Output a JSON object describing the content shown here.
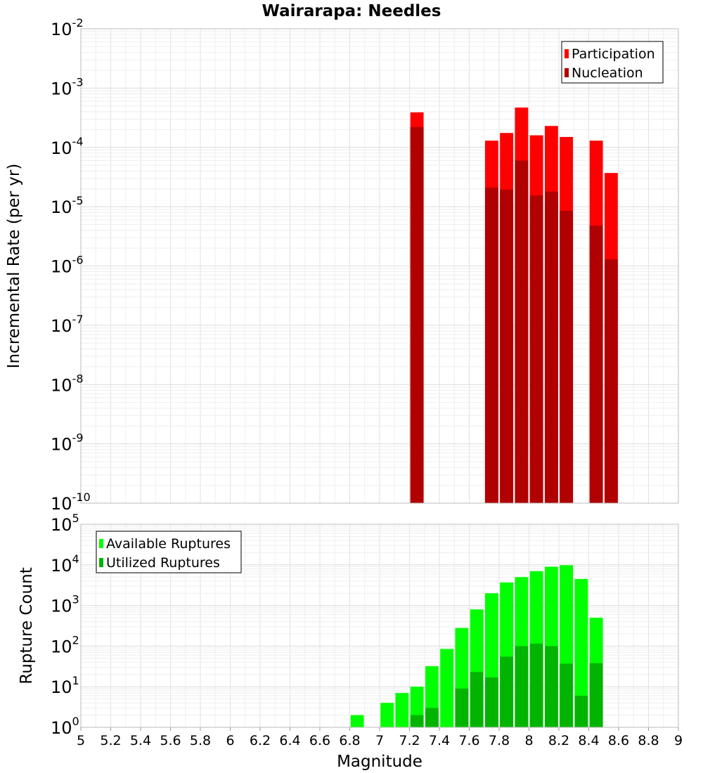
{
  "title": "Wairarapa: Needles",
  "colors": {
    "participation": "#ff0000",
    "nucleation": "#b00000",
    "available": "#00ff00",
    "utilized": "#00b400",
    "grid": "#e6e6e6"
  },
  "chart_data": [
    {
      "type": "bar",
      "title": "Wairarapa: Needles",
      "xlabel": "Magnitude",
      "ylabel": "Incremental Rate (per yr)",
      "xlim": [
        5,
        9
      ],
      "ylim_exp": [
        -10,
        -2
      ],
      "ylog": true,
      "grid": true,
      "legend_position": "top-right",
      "bin_width": 0.1,
      "series": [
        {
          "name": "Participation",
          "color_key": "participation",
          "x": [
            7.25,
            7.75,
            7.85,
            7.95,
            8.05,
            8.15,
            8.25,
            8.45,
            8.55
          ],
          "values": [
            0.00039,
            0.00013,
            0.000175,
            0.00047,
            0.00016,
            0.00023,
            0.00015,
            0.00013,
            3.7e-05
          ]
        },
        {
          "name": "Nucleation",
          "color_key": "nucleation",
          "x": [
            7.25,
            7.75,
            7.85,
            7.95,
            8.05,
            8.15,
            8.25,
            8.45,
            8.55
          ],
          "values": [
            0.00022,
            2.1e-05,
            1.95e-05,
            6e-05,
            1.55e-05,
            1.8e-05,
            8.5e-06,
            4.8e-06,
            1.3e-06
          ]
        }
      ]
    },
    {
      "type": "bar",
      "xlabel": "Magnitude",
      "ylabel": "Rupture Count",
      "xlim": [
        5,
        9
      ],
      "ylim_exp": [
        0,
        5
      ],
      "ylog": true,
      "grid": true,
      "legend_position": "top-left",
      "bin_width": 0.1,
      "series": [
        {
          "name": "Available Ruptures",
          "color_key": "available",
          "x": [
            6.85,
            6.95,
            7.05,
            7.15,
            7.25,
            7.35,
            7.45,
            7.55,
            7.65,
            7.75,
            7.85,
            7.95,
            8.05,
            8.15,
            8.25,
            8.35,
            8.45,
            8.55
          ],
          "values": [
            2,
            1,
            4,
            7,
            10,
            32,
            85,
            280,
            800,
            2000,
            3700,
            5000,
            7000,
            9000,
            9800,
            4500,
            500,
            1
          ]
        },
        {
          "name": "Utilized Ruptures",
          "color_key": "utilized",
          "x": [
            7.15,
            7.25,
            7.35,
            7.45,
            7.55,
            7.65,
            7.75,
            7.85,
            7.95,
            8.05,
            8.15,
            8.25,
            8.35,
            8.45,
            8.55
          ],
          "values": [
            1,
            2,
            3,
            1,
            9,
            23,
            17,
            55,
            100,
            115,
            100,
            37,
            6,
            38,
            1
          ]
        }
      ]
    }
  ],
  "x_tick_labels": [
    "5",
    "5.2",
    "5.4",
    "5.6",
    "5.8",
    "6",
    "6.2",
    "6.4",
    "6.6",
    "6.8",
    "7",
    "7.2",
    "7.4",
    "7.6",
    "7.8",
    "8",
    "8.2",
    "8.4",
    "8.6",
    "8.8",
    "9"
  ]
}
